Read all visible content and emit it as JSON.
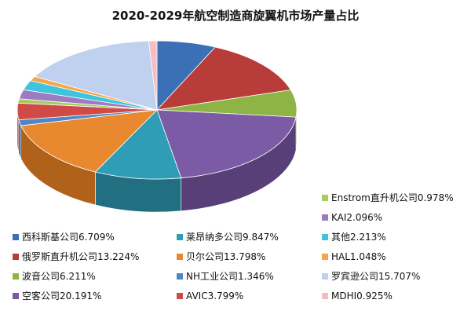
{
  "chart_data": {
    "type": "pie",
    "title": "2020-2029年航空制造商旋翼机市场产量占比",
    "slices": [
      {
        "label": "西科斯基公司",
        "value": 6.709,
        "color": "#3B6FB6",
        "side": "#2A4F85",
        "display": "西科斯基公司6.709%"
      },
      {
        "label": "俄罗斯直升机公司",
        "value": 13.224,
        "color": "#B83C3A",
        "side": "#842A29",
        "display": "俄罗斯直升机公司13.224%"
      },
      {
        "label": "波音公司",
        "value": 6.211,
        "color": "#8DB444",
        "side": "#658231",
        "display": "波音公司6.211%"
      },
      {
        "label": "空客公司",
        "value": 20.191,
        "color": "#7C5BA6",
        "side": "#583F78",
        "display": "空客公司20.191%"
      },
      {
        "label": "莱昂纳多公司",
        "value": 9.847,
        "color": "#2F9DB5",
        "side": "#216F81",
        "display": "莱昂纳多公司9.847%"
      },
      {
        "label": "贝尔公司",
        "value": 13.798,
        "color": "#E8882F",
        "side": "#B0621B",
        "display": "贝尔公司13.798%"
      },
      {
        "label": "NH工业公司",
        "value": 1.346,
        "color": "#4F86C6",
        "side": "#365F8E",
        "display": "NH工业公司1.346%"
      },
      {
        "label": "AVIC",
        "value": 3.799,
        "color": "#D04A47",
        "side": "#973432",
        "display": "AVIC3.799%"
      },
      {
        "label": "Enstrom直升机公司",
        "value": 0.978,
        "color": "#A8CB5C",
        "side": "#7C9742",
        "display": "Enstrom直升机公司0.978%"
      },
      {
        "label": "KAI",
        "value": 2.096,
        "color": "#9B7BC2",
        "side": "#6F588C",
        "display": "KAI2.096%"
      },
      {
        "label": "其他",
        "value": 2.213,
        "color": "#3FC4DC",
        "side": "#2B8C9E",
        "display": "其他2.213%"
      },
      {
        "label": "HAL",
        "value": 1.048,
        "color": "#F5A64A",
        "side": "#B67830",
        "display": "HAL1.048%"
      },
      {
        "label": "罗宾逊公司",
        "value": 15.707,
        "color": "#BFD1EE",
        "side": "#8C9DBA",
        "display": "罗宾逊公司15.707%"
      },
      {
        "label": "MDHI",
        "value": 0.925,
        "color": "#F2BFC4",
        "side": "#B88D92",
        "display": "MDHI0.925%"
      }
    ],
    "legend_order": [
      "Enstrom直升机公司",
      "KAI",
      "西科斯基公司",
      "莱昂纳多公司",
      "其他",
      "俄罗斯直升机公司",
      "贝尔公司",
      "HAL",
      "波音公司",
      "NH工业公司",
      "罗宾逊公司",
      "空客公司",
      "AVIC",
      "MDHI"
    ],
    "legend_placement": "bottom",
    "style": "3d-pie"
  }
}
